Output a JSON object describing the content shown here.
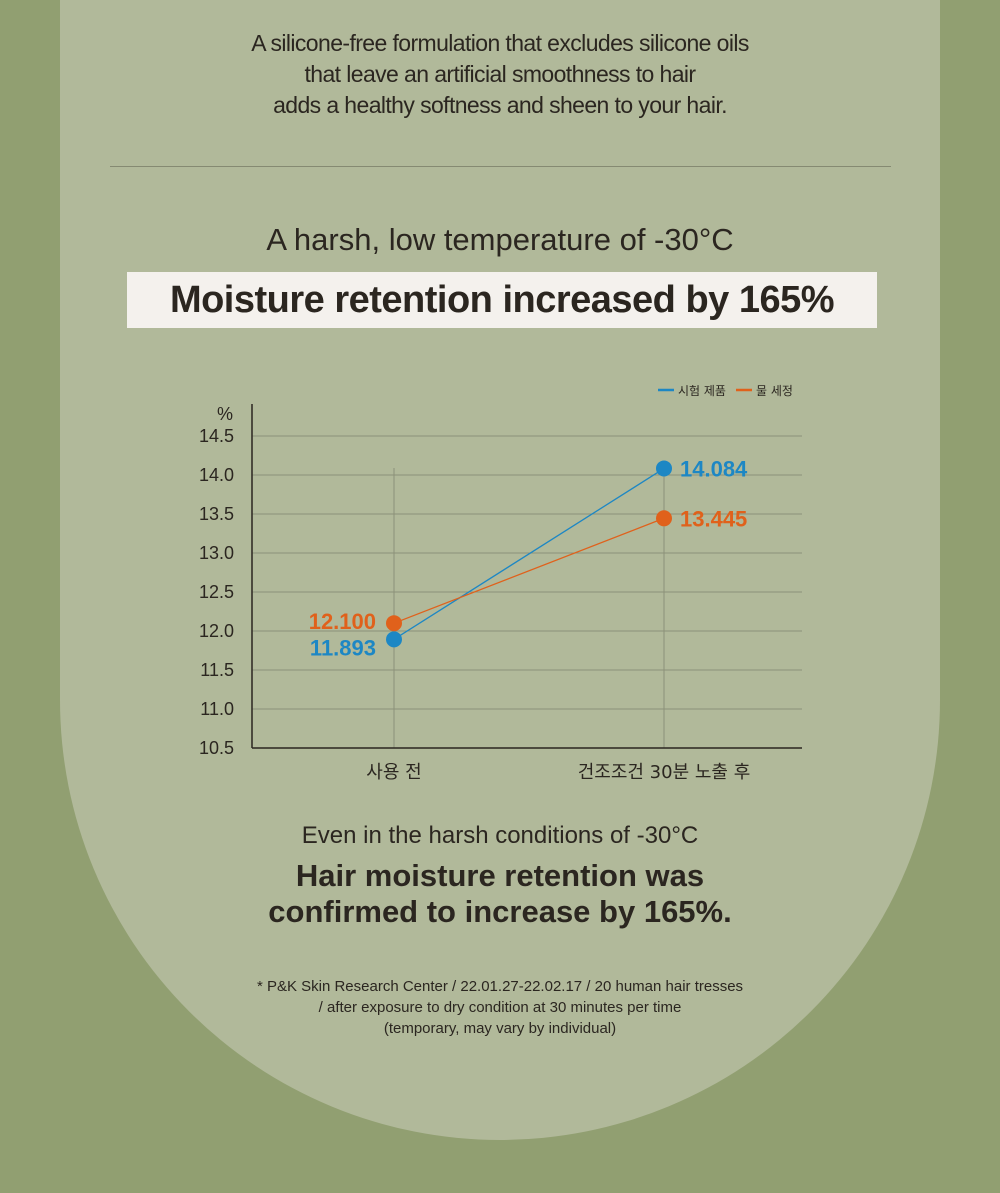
{
  "intro": {
    "lines": [
      "A silicone-free formulation that excludes silicone oils",
      "that leave an artificial smoothness to hair",
      "adds a healthy softness and sheen to your hair."
    ]
  },
  "subtitle": "A harsh, low temperature of -30°C",
  "headline": "Moisture retention increased by 165%",
  "chart_data": {
    "type": "line",
    "categories": [
      "사용 전",
      "건조조건 30분 노출 후"
    ],
    "series": [
      {
        "name": "시험 제품",
        "values": [
          11.893,
          14.084
        ],
        "labels": [
          "11.893",
          "14.084"
        ],
        "color": "#1d87c4"
      },
      {
        "name": "물 세정",
        "values": [
          12.1,
          13.445
        ],
        "labels": [
          "12.100",
          "13.445"
        ],
        "color": "#e0611b"
      }
    ],
    "ylabel": "%",
    "ylim": [
      10.5,
      14.5
    ],
    "yticks": [
      "14.5",
      "14.0",
      "13.5",
      "13.0",
      "12.5",
      "12.0",
      "11.5",
      "11.0",
      "10.5"
    ],
    "grid": true,
    "legend": "top-right"
  },
  "conclusion": {
    "line1": "Even in the harsh conditions of -30°C",
    "line2": "Hair moisture retention was",
    "line3": "confirmed to increase by 165%."
  },
  "footnote": {
    "lines": [
      "* P&K Skin Research Center / 22.01.27-22.02.17 / 20 human hair tresses",
      "/ after exposure to dry condition at 30 minutes per time",
      "(temporary, may vary by individual)"
    ]
  },
  "colors": {
    "background": "#919f71",
    "panel": "#b1b99a",
    "headline_box": "#f4f1ed",
    "test_product": "#1d87c4",
    "water_wash": "#e0611b"
  }
}
